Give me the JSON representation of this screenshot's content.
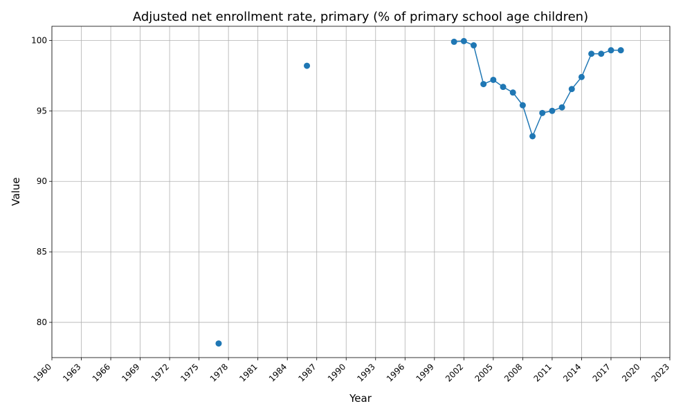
{
  "chart_data": {
    "type": "line",
    "title": "Adjusted net enrollment rate, primary (% of primary school age children)",
    "xlabel": "Year",
    "ylabel": "Value",
    "xlim": [
      1960,
      2023
    ],
    "ylim": [
      77.5,
      101
    ],
    "x_ticks": [
      1960,
      1963,
      1966,
      1969,
      1972,
      1975,
      1978,
      1981,
      1984,
      1987,
      1990,
      1993,
      1996,
      1999,
      2002,
      2005,
      2008,
      2011,
      2014,
      2017,
      2020,
      2023
    ],
    "y_ticks": [
      80,
      85,
      90,
      95,
      100
    ],
    "grid": true,
    "series": [
      {
        "color": "#1f77b4",
        "points": [
          {
            "x": 1977,
            "y": 78.5
          },
          {
            "x": 1986,
            "y": 98.2
          },
          {
            "x": 2001,
            "y": 99.9
          },
          {
            "x": 2002,
            "y": 99.95
          },
          {
            "x": 2003,
            "y": 99.65
          },
          {
            "x": 2004,
            "y": 96.9
          },
          {
            "x": 2005,
            "y": 97.2
          },
          {
            "x": 2006,
            "y": 96.7
          },
          {
            "x": 2007,
            "y": 96.3
          },
          {
            "x": 2008,
            "y": 95.4
          },
          {
            "x": 2009,
            "y": 93.2
          },
          {
            "x": 2010,
            "y": 94.85
          },
          {
            "x": 2011,
            "y": 95.0
          },
          {
            "x": 2012,
            "y": 95.25
          },
          {
            "x": 2013,
            "y": 96.55
          },
          {
            "x": 2014,
            "y": 97.4
          },
          {
            "x": 2015,
            "y": 99.05
          },
          {
            "x": 2016,
            "y": 99.05
          },
          {
            "x": 2017,
            "y": 99.3
          },
          {
            "x": 2018,
            "y": 99.3
          }
        ]
      }
    ]
  }
}
